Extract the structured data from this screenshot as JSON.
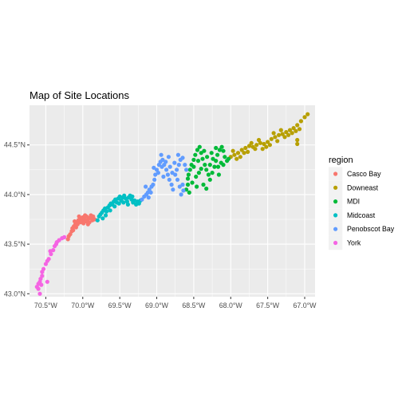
{
  "chart_data": {
    "type": "scatter",
    "title": "Map of Site Locations",
    "xlabel": "",
    "ylabel": "",
    "xlim": [
      -70.72,
      -66.86
    ],
    "ylim": [
      42.97,
      44.9
    ],
    "x_ticks": [
      -70.5,
      -70.0,
      -69.5,
      -69.0,
      -68.5,
      -68.0,
      -67.5,
      -67.0
    ],
    "x_tick_labels": [
      "70.5°W",
      "70.0°W",
      "69.5°W",
      "69.0°W",
      "68.5°W",
      "68.0°W",
      "67.5°W",
      "67.0°W"
    ],
    "y_ticks": [
      43.0,
      43.5,
      44.0,
      44.5
    ],
    "y_tick_labels": [
      "43.0°N",
      "43.5°N",
      "44.0°N",
      "44.5°N"
    ],
    "grid": true,
    "legend_title": "region",
    "legend_position": "right",
    "series": [
      {
        "name": "Casco Bay",
        "color": "#F8766D",
        "points": [
          [
            -70.2,
            43.55
          ],
          [
            -70.19,
            43.58
          ],
          [
            -70.17,
            43.6
          ],
          [
            -70.15,
            43.63
          ],
          [
            -70.14,
            43.66
          ],
          [
            -70.12,
            43.68
          ],
          [
            -70.1,
            43.7
          ],
          [
            -70.08,
            43.72
          ],
          [
            -70.06,
            43.74
          ],
          [
            -70.04,
            43.75
          ],
          [
            -70.02,
            43.76
          ],
          [
            -70.0,
            43.77
          ],
          [
            -69.98,
            43.75
          ],
          [
            -69.96,
            43.73
          ],
          [
            -69.94,
            43.74
          ],
          [
            -69.92,
            43.76
          ],
          [
            -69.9,
            43.77
          ],
          [
            -69.88,
            43.76
          ],
          [
            -69.86,
            43.78
          ],
          [
            -69.84,
            43.75
          ],
          [
            -70.11,
            43.73
          ],
          [
            -70.07,
            43.7
          ],
          [
            -70.03,
            43.72
          ],
          [
            -69.99,
            43.71
          ],
          [
            -69.95,
            43.78
          ],
          [
            -69.91,
            43.72
          ],
          [
            -69.87,
            43.74
          ],
          [
            -70.13,
            43.64
          ],
          [
            -70.09,
            43.67
          ],
          [
            -70.05,
            43.78
          ],
          [
            -70.01,
            43.74
          ],
          [
            -69.97,
            43.79
          ],
          [
            -69.93,
            43.7
          ],
          [
            -69.89,
            43.79
          ]
        ]
      },
      {
        "name": "Downeast",
        "color": "#B79F00",
        "points": [
          [
            -68.0,
            44.38
          ],
          [
            -67.95,
            44.4
          ],
          [
            -67.9,
            44.42
          ],
          [
            -67.85,
            44.45
          ],
          [
            -67.8,
            44.47
          ],
          [
            -67.75,
            44.49
          ],
          [
            -67.7,
            44.48
          ],
          [
            -67.65,
            44.5
          ],
          [
            -67.6,
            44.52
          ],
          [
            -67.55,
            44.51
          ],
          [
            -67.5,
            44.53
          ],
          [
            -67.45,
            44.56
          ],
          [
            -67.4,
            44.58
          ],
          [
            -67.35,
            44.6
          ],
          [
            -67.3,
            44.61
          ],
          [
            -67.25,
            44.63
          ],
          [
            -67.2,
            44.65
          ],
          [
            -67.15,
            44.67
          ],
          [
            -67.1,
            44.7
          ],
          [
            -67.05,
            44.74
          ],
          [
            -67.0,
            44.78
          ],
          [
            -66.96,
            44.81
          ],
          [
            -67.97,
            44.44
          ],
          [
            -67.87,
            44.38
          ],
          [
            -67.77,
            44.43
          ],
          [
            -67.67,
            44.46
          ],
          [
            -67.57,
            44.46
          ],
          [
            -67.47,
            44.5
          ],
          [
            -67.37,
            44.54
          ],
          [
            -67.27,
            44.58
          ],
          [
            -67.17,
            44.62
          ],
          [
            -67.07,
            44.66
          ],
          [
            -67.32,
            44.65
          ],
          [
            -67.22,
            44.6
          ],
          [
            -67.12,
            44.64
          ],
          [
            -67.62,
            44.55
          ],
          [
            -67.52,
            44.48
          ],
          [
            -67.42,
            44.62
          ],
          [
            -67.92,
            44.36
          ],
          [
            -67.82,
            44.42
          ],
          [
            -67.72,
            44.52
          ],
          [
            -67.1,
            44.51
          ],
          [
            -67.1,
            44.55
          ]
        ]
      },
      {
        "name": "MDI",
        "color": "#00BA38",
        "points": [
          [
            -68.6,
            44.05
          ],
          [
            -68.58,
            44.1
          ],
          [
            -68.57,
            44.2
          ],
          [
            -68.55,
            44.25
          ],
          [
            -68.53,
            44.3
          ],
          [
            -68.5,
            44.35
          ],
          [
            -68.48,
            44.4
          ],
          [
            -68.45,
            44.45
          ],
          [
            -68.42,
            44.48
          ],
          [
            -68.4,
            44.42
          ],
          [
            -68.38,
            44.36
          ],
          [
            -68.35,
            44.3
          ],
          [
            -68.33,
            44.25
          ],
          [
            -68.3,
            44.2
          ],
          [
            -68.28,
            44.15
          ],
          [
            -68.25,
            44.22
          ],
          [
            -68.22,
            44.28
          ],
          [
            -68.2,
            44.34
          ],
          [
            -68.18,
            44.4
          ],
          [
            -68.15,
            44.45
          ],
          [
            -68.12,
            44.48
          ],
          [
            -68.1,
            44.44
          ],
          [
            -68.08,
            44.38
          ],
          [
            -68.05,
            44.34
          ],
          [
            -68.03,
            44.36
          ],
          [
            -68.2,
            44.47
          ],
          [
            -68.52,
            44.12
          ],
          [
            -68.47,
            44.18
          ],
          [
            -68.43,
            44.22
          ],
          [
            -68.37,
            44.1
          ],
          [
            -68.33,
            44.06
          ],
          [
            -68.28,
            44.3
          ],
          [
            -68.24,
            44.36
          ],
          [
            -68.17,
            44.28
          ],
          [
            -68.13,
            44.32
          ],
          [
            -68.56,
            44.02
          ],
          [
            -68.46,
            44.08
          ],
          [
            -68.4,
            44.26
          ],
          [
            -68.36,
            44.44
          ],
          [
            -68.26,
            44.42
          ],
          [
            -68.16,
            44.2
          ],
          [
            -68.5,
            44.28
          ],
          [
            -68.44,
            44.34
          ],
          [
            -68.58,
            44.16
          ],
          [
            -68.32,
            44.38
          ],
          [
            -68.1,
            44.3
          ]
        ]
      },
      {
        "name": "Midcoast",
        "color": "#00BFC4",
        "points": [
          [
            -69.8,
            43.74
          ],
          [
            -69.78,
            43.78
          ],
          [
            -69.76,
            43.8
          ],
          [
            -69.74,
            43.82
          ],
          [
            -69.72,
            43.84
          ],
          [
            -69.7,
            43.86
          ],
          [
            -69.68,
            43.83
          ],
          [
            -69.66,
            43.87
          ],
          [
            -69.64,
            43.89
          ],
          [
            -69.62,
            43.91
          ],
          [
            -69.6,
            43.9
          ],
          [
            -69.58,
            43.93
          ],
          [
            -69.56,
            43.95
          ],
          [
            -69.54,
            43.92
          ],
          [
            -69.52,
            43.96
          ],
          [
            -69.5,
            43.98
          ],
          [
            -69.48,
            43.94
          ],
          [
            -69.46,
            43.97
          ],
          [
            -69.44,
            43.99
          ],
          [
            -69.42,
            43.96
          ],
          [
            -69.4,
            43.93
          ],
          [
            -69.38,
            43.97
          ],
          [
            -69.36,
            43.99
          ],
          [
            -69.34,
            43.95
          ],
          [
            -69.32,
            43.92
          ],
          [
            -69.3,
            43.94
          ],
          [
            -69.28,
            43.9
          ],
          [
            -69.26,
            43.93
          ],
          [
            -69.24,
            43.91
          ],
          [
            -69.22,
            43.94
          ],
          [
            -69.73,
            43.76
          ],
          [
            -69.69,
            43.79
          ],
          [
            -69.63,
            43.84
          ],
          [
            -69.57,
            43.88
          ],
          [
            -69.51,
            43.91
          ],
          [
            -69.45,
            43.92
          ],
          [
            -69.39,
            43.9
          ],
          [
            -69.33,
            43.98
          ]
        ]
      },
      {
        "name": "Penobscot Bay",
        "color": "#619CFF",
        "points": [
          [
            -69.2,
            43.95
          ],
          [
            -69.17,
            43.98
          ],
          [
            -69.14,
            44.0
          ],
          [
            -69.12,
            44.02
          ],
          [
            -69.1,
            44.05
          ],
          [
            -69.07,
            44.08
          ],
          [
            -69.05,
            44.1
          ],
          [
            -69.03,
            44.15
          ],
          [
            -69.02,
            44.2
          ],
          [
            -69.0,
            44.25
          ],
          [
            -68.97,
            44.3
          ],
          [
            -68.95,
            44.33
          ],
          [
            -68.92,
            44.35
          ],
          [
            -68.9,
            44.3
          ],
          [
            -68.87,
            44.25
          ],
          [
            -68.85,
            44.2
          ],
          [
            -68.83,
            44.15
          ],
          [
            -68.8,
            44.1
          ],
          [
            -68.78,
            44.05
          ],
          [
            -68.75,
            44.2
          ],
          [
            -68.73,
            44.25
          ],
          [
            -68.7,
            44.3
          ],
          [
            -68.68,
            44.35
          ],
          [
            -68.65,
            44.37
          ],
          [
            -68.62,
            44.3
          ],
          [
            -68.6,
            44.25
          ],
          [
            -68.65,
            44.1
          ],
          [
            -68.67,
            44.0
          ],
          [
            -68.98,
            44.22
          ],
          [
            -68.93,
            44.28
          ],
          [
            -68.88,
            44.33
          ],
          [
            -68.82,
            44.28
          ],
          [
            -68.76,
            44.32
          ],
          [
            -68.72,
            44.15
          ],
          [
            -68.69,
            44.08
          ],
          [
            -68.64,
            44.04
          ],
          [
            -69.15,
            44.08
          ],
          [
            -69.08,
            44.02
          ],
          [
            -68.94,
            44.4
          ],
          [
            -68.84,
            44.38
          ],
          [
            -69.04,
            44.27
          ],
          [
            -68.79,
            44.22
          ],
          [
            -68.71,
            44.4
          ],
          [
            -69.11,
            43.97
          ],
          [
            -68.91,
            44.18
          ]
        ]
      },
      {
        "name": "York",
        "color": "#F564E3",
        "points": [
          [
            -70.62,
            43.07
          ],
          [
            -70.6,
            43.1
          ],
          [
            -70.58,
            43.12
          ],
          [
            -70.57,
            43.15
          ],
          [
            -70.55,
            43.18
          ],
          [
            -70.55,
            43.22
          ],
          [
            -70.53,
            43.25
          ],
          [
            -70.5,
            43.3
          ],
          [
            -70.48,
            43.33
          ],
          [
            -70.46,
            43.35
          ],
          [
            -70.43,
            43.4
          ],
          [
            -70.4,
            43.44
          ],
          [
            -70.38,
            43.48
          ],
          [
            -70.35,
            43.52
          ],
          [
            -70.32,
            43.54
          ],
          [
            -70.28,
            43.56
          ],
          [
            -70.25,
            43.57
          ],
          [
            -70.58,
            43.0
          ],
          [
            -70.48,
            43.12
          ],
          [
            -70.56,
            43.09
          ],
          [
            -70.6,
            43.05
          ],
          [
            -70.44,
            43.43
          ],
          [
            -70.36,
            43.5
          ]
        ]
      }
    ]
  }
}
